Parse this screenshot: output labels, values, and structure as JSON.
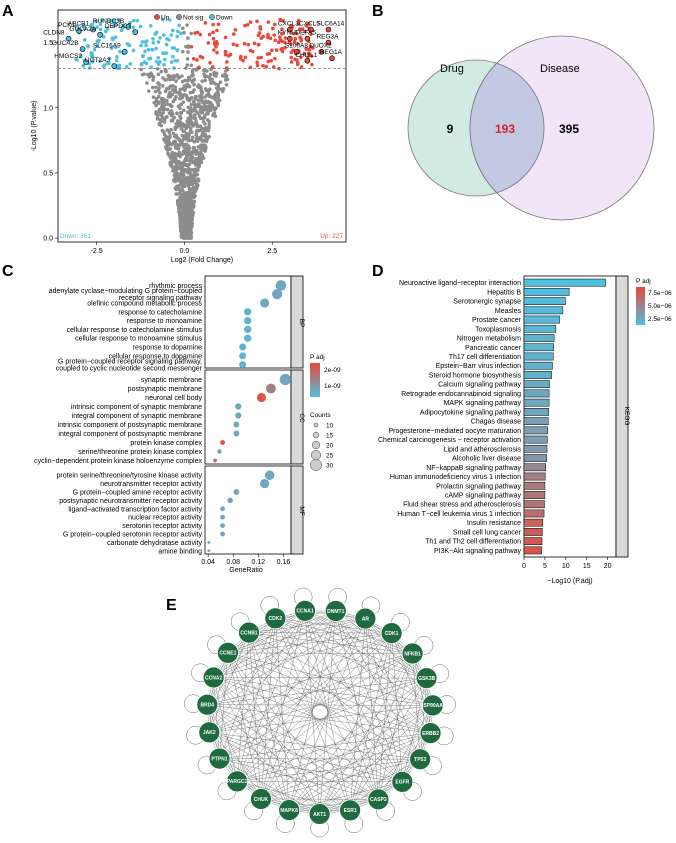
{
  "figure": {
    "panel_labels": [
      "A",
      "B",
      "C",
      "D",
      "E"
    ]
  },
  "colors": {
    "up": "#e8493a",
    "down": "#4fbfe0",
    "notsig": "#8c8c8c",
    "venn_drug": "#cde9df",
    "venn_disease": "#eedcf4",
    "venn_overlap": "#c4c9e3",
    "node": "#1f6b3f",
    "kegg_high": "#e8493a",
    "kegg_low": "#4fbfe0"
  },
  "chart_data": [
    {
      "id": "volcano",
      "type": "scatter",
      "title": "",
      "xlabel": "Log2 (Fold Change)",
      "ylabel": "-Log10 (P.value)",
      "xlim": [
        -3.6,
        4.6
      ],
      "ylim": [
        -0.03,
        1.75
      ],
      "xticks": [
        -2.5,
        0.0,
        2.5
      ],
      "xtick_labels": [
        "-2.5",
        "0.0",
        "2.5"
      ],
      "yticks": [
        0.0,
        0.5,
        1.0,
        1.5
      ],
      "ytick_labels": [
        "0.0",
        "0.5",
        "1.0",
        "1.5"
      ],
      "threshold_y": 1.3,
      "legend": [
        "Up",
        "Not sig",
        "Down"
      ],
      "legend_position": "top",
      "down_count_label": "Down: 361",
      "up_count_label": "Up: 227",
      "labeled_genes": [
        {
          "name": "PCK1",
          "x": -3.0,
          "y": 1.59,
          "dir": "down"
        },
        {
          "name": "ABCB1",
          "x": -2.6,
          "y": 1.6,
          "dir": "down"
        },
        {
          "name": "CLDN8",
          "x": -3.3,
          "y": 1.53,
          "dir": "down"
        },
        {
          "name": "GUCA2A",
          "x": -2.4,
          "y": 1.56,
          "dir": "down"
        },
        {
          "name": "RUNDC3B",
          "x": -1.6,
          "y": 1.62,
          "dir": "down"
        },
        {
          "name": "DEPDC7",
          "x": -1.4,
          "y": 1.58,
          "dir": "down"
        },
        {
          "name": "GUCA2B",
          "x": -2.9,
          "y": 1.45,
          "dir": "down"
        },
        {
          "name": "SLC16A9",
          "x": -1.7,
          "y": 1.43,
          "dir": "down"
        },
        {
          "name": "HMGCS2",
          "x": -2.8,
          "y": 1.35,
          "dir": "down"
        },
        {
          "name": "UGT2A3",
          "x": -2.0,
          "y": 1.32,
          "dir": "down"
        },
        {
          "name": "CXCL3",
          "x": 3.0,
          "y": 1.6,
          "dir": "up"
        },
        {
          "name": "CXCL5",
          "x": 3.6,
          "y": 1.6,
          "dir": "up"
        },
        {
          "name": "SLC6A14",
          "x": 4.1,
          "y": 1.6,
          "dir": "up"
        },
        {
          "name": "KYNU",
          "x": 3.0,
          "y": 1.53,
          "dir": "up"
        },
        {
          "name": "DEFA5",
          "x": 3.5,
          "y": 1.53,
          "dir": "up"
        },
        {
          "name": "REG3A",
          "x": 4.1,
          "y": 1.5,
          "dir": "up"
        },
        {
          "name": "S100A8",
          "x": 3.2,
          "y": 1.43,
          "dir": "up"
        },
        {
          "name": "DUOX2",
          "x": 3.9,
          "y": 1.43,
          "dir": "up"
        },
        {
          "name": "CHI3L1",
          "x": 3.5,
          "y": 1.36,
          "dir": "up"
        },
        {
          "name": "REG1A",
          "x": 4.2,
          "y": 1.38,
          "dir": "up"
        }
      ]
    },
    {
      "id": "venn",
      "type": "venn",
      "sets": [
        {
          "name": "Drug",
          "only": 9
        },
        {
          "name": "Disease",
          "only": 395
        }
      ],
      "intersection": 193,
      "labels": [
        "9",
        "193",
        "395"
      ]
    },
    {
      "id": "go_dotplot",
      "type": "scatter",
      "xlabel": "GeneRatio",
      "xlim": [
        0.035,
        0.172
      ],
      "xticks": [
        0.04,
        0.08,
        0.12,
        0.16
      ],
      "xtick_labels": [
        "0.04",
        "0.08",
        "0.12",
        "0.16"
      ],
      "legend_color_title": "P adj",
      "legend_color_labels": [
        "2e-09",
        "1e-09"
      ],
      "legend_size_title": "Counts",
      "legend_size_labels": [
        "10",
        "15",
        "20",
        "25",
        "30"
      ],
      "groups": [
        {
          "name": "BP",
          "terms": [
            {
              "term": "rhythmic process",
              "ratio": 0.156,
              "count": 28,
              "p": 0.2
            },
            {
              "term": "adenylate cyclase−modulating G protein−coupled\nreceptor signaling pathway",
              "ratio": 0.15,
              "count": 27,
              "p": 0.2
            },
            {
              "term": "olefinic compound metabolic process",
              "ratio": 0.13,
              "count": 24,
              "p": 0.2
            },
            {
              "term": "response to catecholamine",
              "ratio": 0.103,
              "count": 19,
              "p": 0.1
            },
            {
              "term": "response to monoamine",
              "ratio": 0.103,
              "count": 19,
              "p": 0.1
            },
            {
              "term": "cellular response to catecholamine stimulus",
              "ratio": 0.103,
              "count": 19,
              "p": 0.1
            },
            {
              "term": "cellular response to monoamine stimulus",
              "ratio": 0.103,
              "count": 19,
              "p": 0.1
            },
            {
              "term": "response to dopamine",
              "ratio": 0.095,
              "count": 18,
              "p": 0.1
            },
            {
              "term": "cellular response to dopamine",
              "ratio": 0.095,
              "count": 18,
              "p": 0.1
            },
            {
              "term": "G protein−coupled receptor signaling pathway,\ncoupled to cyclic nucleotide second messenger",
              "ratio": 0.095,
              "count": 18,
              "p": 0.1
            }
          ]
        },
        {
          "name": "CC",
          "terms": [
            {
              "term": "synaptic membrane",
              "ratio": 0.163,
              "count": 30,
              "p": 0.2
            },
            {
              "term": "postsynaptic membrane",
              "ratio": 0.14,
              "count": 26,
              "p": 0.55
            },
            {
              "term": "neuronal cell body",
              "ratio": 0.125,
              "count": 24,
              "p": 0.9
            },
            {
              "term": "intrinsic component of synaptic membrane",
              "ratio": 0.088,
              "count": 16,
              "p": 0.2
            },
            {
              "term": "integral component of synaptic membrane",
              "ratio": 0.088,
              "count": 16,
              "p": 0.2
            },
            {
              "term": "intrinsic component of postsynaptic membrane",
              "ratio": 0.085,
              "count": 15,
              "p": 0.2
            },
            {
              "term": "integral component of postsynaptic membrane",
              "ratio": 0.085,
              "count": 15,
              "p": 0.2
            },
            {
              "term": "protein kinase complex",
              "ratio": 0.063,
              "count": 12,
              "p": 1.0
            },
            {
              "term": "serine/threonine protein kinase complex",
              "ratio": 0.058,
              "count": 11,
              "p": 0.2
            },
            {
              "term": "cyclin−dependent protein kinase holoenzyme complex",
              "ratio": 0.051,
              "count": 9,
              "p": 0.7
            }
          ]
        },
        {
          "name": "MF",
          "terms": [
            {
              "term": "protein serine/threonine/tyrosine kinase activity",
              "ratio": 0.138,
              "count": 25,
              "p": 0.2
            },
            {
              "term": "neurotransmitter receptor activity",
              "ratio": 0.13,
              "count": 24,
              "p": 0.2
            },
            {
              "term": "G protein−coupled amine receptor activity",
              "ratio": 0.085,
              "count": 15,
              "p": 0.2
            },
            {
              "term": "postsynaptic neurotransmitter receptor activity",
              "ratio": 0.075,
              "count": 14,
              "p": 0.2
            },
            {
              "term": "ligand−activated transcription factor activity",
              "ratio": 0.063,
              "count": 12,
              "p": 0.2
            },
            {
              "term": "nuclear receptor activity",
              "ratio": 0.063,
              "count": 12,
              "p": 0.2
            },
            {
              "term": "serotonin receptor activity",
              "ratio": 0.063,
              "count": 12,
              "p": 0.2
            },
            {
              "term": "G protein−coupled serotonin receptor activity",
              "ratio": 0.063,
              "count": 12,
              "p": 0.2
            },
            {
              "term": "carbonate dehydratase activity",
              "ratio": 0.041,
              "count": 7,
              "p": 0.2
            },
            {
              "term": "amine binding",
              "ratio": 0.041,
              "count": 7,
              "p": 0.2
            }
          ]
        }
      ]
    },
    {
      "id": "kegg_bar",
      "type": "bar",
      "orientation": "horizontal",
      "xlabel": "−Log10 (P.adj)",
      "xlim": [
        0,
        22
      ],
      "xticks": [
        0,
        5,
        10,
        15,
        20
      ],
      "xtick_labels": [
        "0",
        "5",
        "10",
        "15",
        "20"
      ],
      "facet_label": "KEGG",
      "legend_title": "P adj",
      "legend_labels": [
        "7.5e−06",
        "5.0e−06",
        "2.5e−06"
      ],
      "categories": [
        "Neuroactive ligand−receptor interaction",
        "Hepatitis B",
        "Serotonergic synapse",
        "Measles",
        "Prostate cancer",
        "Toxoplasmosis",
        "Nitrogen metabolism",
        "Pancreatic cancer",
        "Th17 cell differentiation",
        "Epstein−Barr virus infection",
        "Steroid hormone biosynthesis",
        "Calcium signaling pathway",
        "Retrograde endocannabinoid signaling",
        "MAPK signaling pathway",
        "Adipocytokine signaling pathway",
        "Chagas disease",
        "Progesterone−mediated oocyte maturation",
        "Chemical carcinogenesis − receptor activation",
        "Lipid and atherosclerosis",
        "Alcoholic liver disease",
        "NF−kappaB signaling pathway",
        "Human immunodeficiency virus 1 infection",
        "Prolactin signaling pathway",
        "cAMP signaling pathway",
        "Fluid shear stress and atherosclerosis",
        "Human T−cell leukemia virus 1 infection",
        "Insulin resistance",
        "Small cell lung cancer",
        "Th1 and Th2 cell differentiation",
        "PI3K−Akt signaling pathway"
      ],
      "values": [
        19.5,
        10.8,
        9.9,
        9.3,
        8.5,
        7.6,
        7.2,
        7.1,
        7.0,
        6.8,
        6.6,
        6.1,
        6.0,
        6.0,
        5.9,
        5.8,
        5.7,
        5.6,
        5.5,
        5.4,
        5.2,
        5.1,
        5.0,
        5.0,
        4.9,
        4.8,
        4.5,
        4.4,
        4.3,
        4.2
      ],
      "padj_norm": [
        0.0,
        0.02,
        0.03,
        0.04,
        0.05,
        0.08,
        0.1,
        0.1,
        0.1,
        0.12,
        0.13,
        0.18,
        0.2,
        0.2,
        0.22,
        0.25,
        0.28,
        0.3,
        0.32,
        0.35,
        0.45,
        0.55,
        0.6,
        0.62,
        0.65,
        0.68,
        0.8,
        0.82,
        0.86,
        0.9
      ]
    },
    {
      "id": "ppi_network",
      "type": "network",
      "nodes": [
        "DNMT1",
        "AR",
        "CDK1",
        "NFKB1",
        "GSK3B",
        "HSP90AA1",
        "ERBB2",
        "TP53",
        "EGFR",
        "CASP3",
        "ESR1",
        "AKT1",
        "MAPK8",
        "CHUK",
        "PPARGC1A",
        "PTPN1",
        "JAK2",
        "BRD4",
        "CCNA2",
        "CCNE1",
        "CCNB1",
        "CDK2",
        "CCNA1"
      ]
    }
  ]
}
